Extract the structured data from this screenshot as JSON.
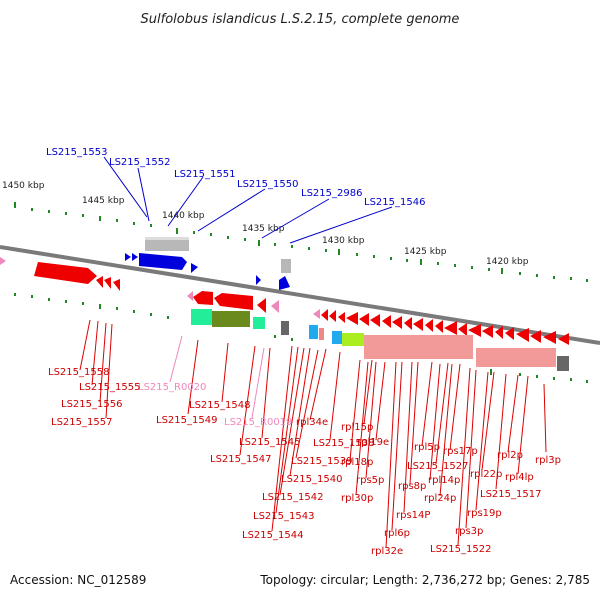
{
  "title": "Sulfolobus islandicus L.S.2.15, complete genome",
  "accession": "Accession: NC_012589",
  "topology": "Topology: circular; Length: 2,736,272 bp; Genes: 2,785",
  "colors": {
    "blue_label": "#0000cc",
    "red_label": "#cc0000",
    "pink_label": "#ee88bb",
    "tick": "#228822",
    "backbone": "#7a7a7a"
  },
  "scale_labels": [
    "1450 kbp",
    "1445 kbp",
    "1440 kbp",
    "1435 kbp",
    "1430 kbp",
    "1425 kbp",
    "1420 kbp"
  ],
  "blue_labels": [
    "LS215_1553",
    "LS215_1552",
    "LS215_1551",
    "LS215_1550",
    "LS215_2986",
    "LS215_1546"
  ],
  "pink_labels": [
    "LS215_R0020",
    "LS215_R0019"
  ],
  "red_labels": [
    "LS215_1558",
    "LS215_1555",
    "LS215_1556",
    "LS215_1557",
    "LS215_1548",
    "LS215_1549",
    "LS215_1545",
    "LS215_1547",
    "rpl34e",
    "LS215_1538",
    "LS215_1539",
    "LS215_1540",
    "LS215_1542",
    "LS215_1543",
    "LS215_1544",
    "rpl15p",
    "rpl19e",
    "rpl18p",
    "rps5p",
    "rpl30p",
    "rpl5p",
    "rps17p",
    "LS215_1527",
    "rps8p",
    "rpl14p",
    "rpl24p",
    "rpl6p",
    "rps14P",
    "rpl32e",
    "rpl22p",
    "rpl2p",
    "rpl4lp",
    "rpl3p",
    "LS215_1517",
    "rps19p",
    "rps3p",
    "LS215_1522"
  ]
}
